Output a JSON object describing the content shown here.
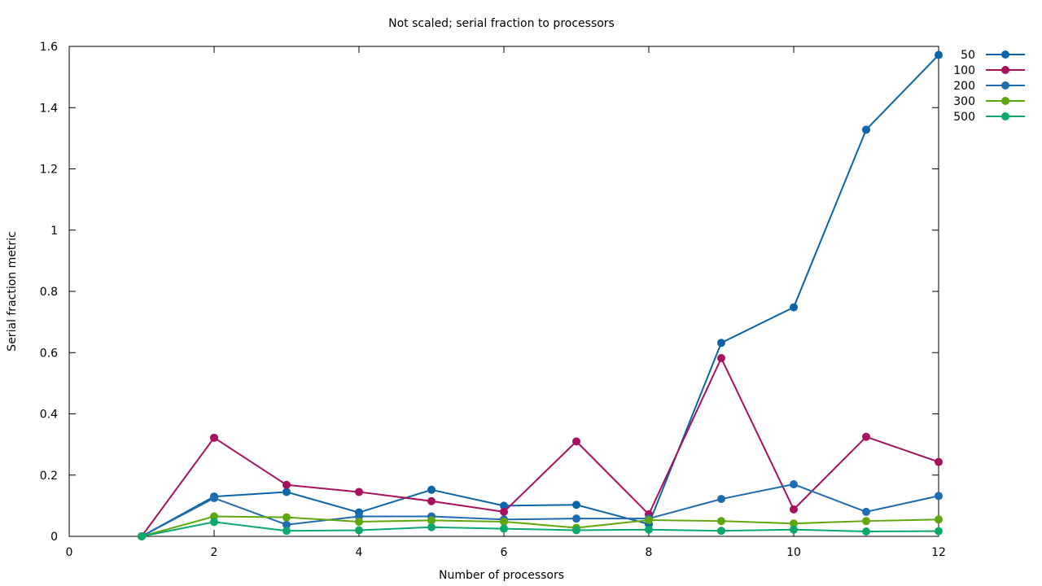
{
  "chart_data": {
    "type": "line",
    "title": "Not scaled; serial fraction to processors",
    "xlabel": "Number of processors",
    "ylabel": "Serial fraction metric",
    "xlim": [
      0,
      12
    ],
    "ylim": [
      0,
      1.6
    ],
    "xticks": [
      "0",
      "2",
      "4",
      "6",
      "8",
      "10",
      "12"
    ],
    "yticks": [
      "0",
      "0.2",
      "0.4",
      "0.6",
      "0.8",
      "1",
      "1.2",
      "1.4",
      "1.6"
    ],
    "x": [
      1,
      2,
      3,
      4,
      5,
      6,
      7,
      8,
      9,
      10,
      11,
      12
    ],
    "legend_position": "right",
    "grid": false,
    "series": [
      {
        "name": "50",
        "color": "#0a64a8",
        "values": [
          0,
          0.13,
          0.145,
          0.078,
          0.152,
          0.1,
          0.103,
          0.04,
          0.632,
          0.748,
          1.328,
          1.572
        ]
      },
      {
        "name": "100",
        "color": "#a8105e",
        "values": [
          0,
          0.322,
          0.168,
          0.145,
          0.115,
          0.08,
          0.31,
          0.072,
          0.582,
          0.088,
          0.325,
          0.243
        ]
      },
      {
        "name": "200",
        "color": "#1f6cb0",
        "values": [
          0,
          0.125,
          0.038,
          0.065,
          0.065,
          0.055,
          0.058,
          0.058,
          0.122,
          0.17,
          0.08,
          0.132
        ]
      },
      {
        "name": "300",
        "color": "#5fa80c",
        "values": [
          0,
          0.065,
          0.062,
          0.048,
          0.052,
          0.048,
          0.028,
          0.053,
          0.05,
          0.042,
          0.05,
          0.055
        ]
      },
      {
        "name": "500",
        "color": "#0aa86b",
        "values": [
          0,
          0.047,
          0.018,
          0.02,
          0.03,
          0.025,
          0.02,
          0.022,
          0.018,
          0.022,
          0.016,
          0.017
        ]
      }
    ]
  }
}
